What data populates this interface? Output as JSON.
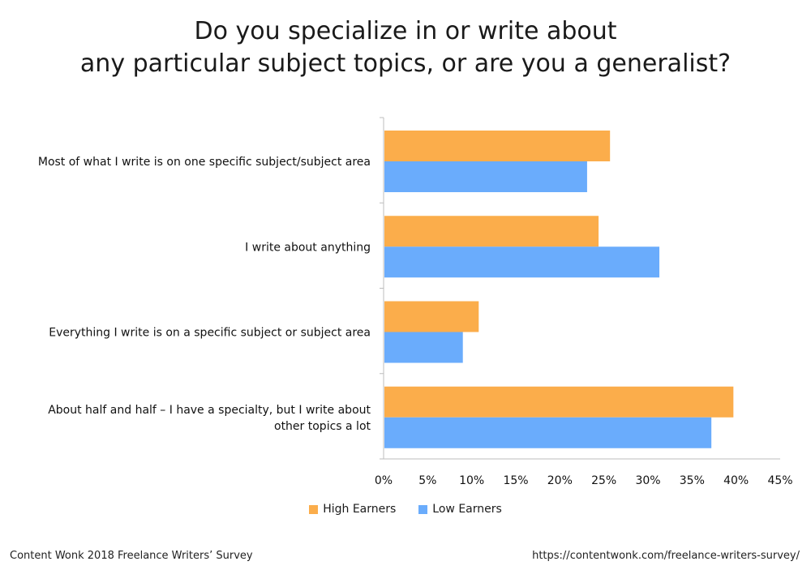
{
  "title": {
    "line1": "Do you specialize in or write about",
    "line2": "any particular subject topics, or are you a generalist?"
  },
  "chart_data": {
    "type": "bar",
    "orientation": "horizontal",
    "categories": [
      [
        "Most of what I write is on one specific subject/subject area"
      ],
      [
        "I write about anything"
      ],
      [
        "Everything I write is on a specific subject or subject area"
      ],
      [
        "About half and half – I have a specialty, but I write about",
        "other topics a lot"
      ]
    ],
    "series": [
      {
        "name": "High Earners",
        "color": "#fbad4b",
        "values": [
          25.6,
          24.3,
          10.7,
          39.6
        ]
      },
      {
        "name": "Low Earners",
        "color": "#6aacfc",
        "values": [
          23.0,
          31.2,
          8.9,
          37.1
        ]
      }
    ],
    "xlim": [
      0,
      45
    ],
    "xticks": [
      "0%",
      "5%",
      "10%",
      "15%",
      "20%",
      "25%",
      "30%",
      "35%",
      "40%",
      "45%"
    ],
    "grid": false,
    "legend_position": "bottom"
  },
  "footer": {
    "source": "Content Wonk 2018 Freelance Writers’ Survey",
    "url": "https://contentwonk.com/freelance-writers-survey/"
  }
}
